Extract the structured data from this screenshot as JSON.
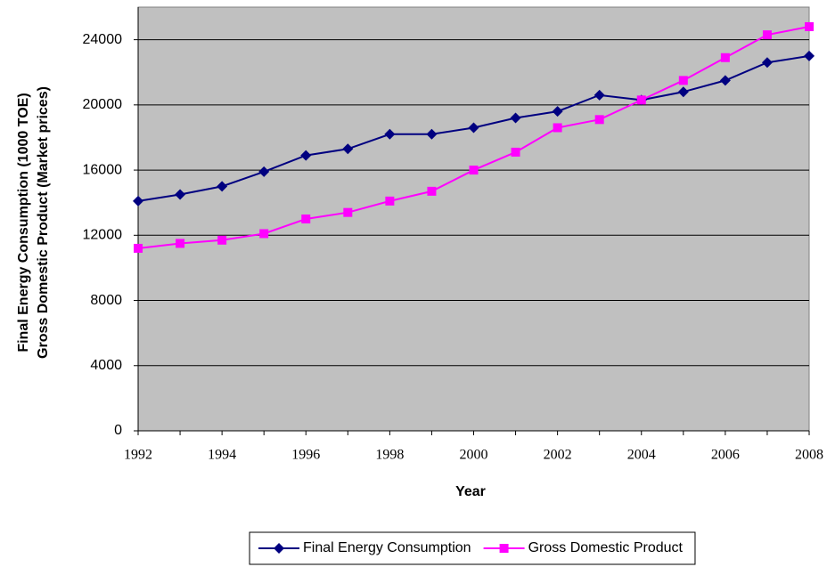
{
  "chart_data": {
    "type": "line",
    "x_label": "Year",
    "y_label": [
      "Final Energy Consumption (1000 TOE)",
      "Gross Domestic Product (Market prices)"
    ],
    "x": [
      1992,
      1993,
      1994,
      1995,
      1996,
      1997,
      1998,
      1999,
      2000,
      2001,
      2002,
      2003,
      2004,
      2005,
      2006,
      2007,
      2008
    ],
    "series": [
      {
        "name": "Final Energy Consumption",
        "color": "#000080",
        "marker": "diamond",
        "values": [
          14100,
          14500,
          15000,
          15900,
          16900,
          17300,
          18200,
          18200,
          18600,
          19200,
          19600,
          20600,
          20300,
          20800,
          21500,
          22600,
          23000
        ]
      },
      {
        "name": "Gross Domestic Product",
        "color": "#ff00ff",
        "marker": "square",
        "values": [
          11200,
          11500,
          11700,
          12100,
          13000,
          13400,
          14100,
          14700,
          16000,
          17100,
          18600,
          19100,
          20300,
          21500,
          22900,
          24300,
          24800
        ]
      }
    ],
    "xlim": [
      1992,
      2008
    ],
    "xticks": [
      1992,
      1994,
      1996,
      1998,
      2000,
      2002,
      2004,
      2006,
      2008
    ],
    "ylim": [
      0,
      26000
    ],
    "yticks": [
      0,
      4000,
      8000,
      12000,
      16000,
      20000,
      24000
    ],
    "grid": true,
    "plot_background": "#c0c0c0",
    "legend": "bottom"
  }
}
